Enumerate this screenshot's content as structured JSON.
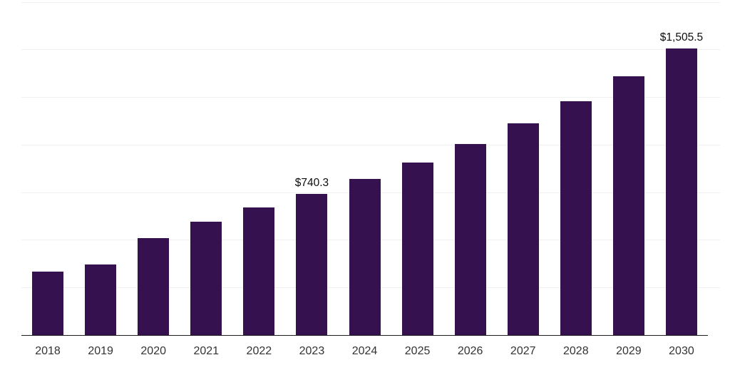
{
  "chart": {
    "background": "#ffffff",
    "bar_color": "#361150",
    "grid_color": "#f0f0f2",
    "axis_color": "#1f1f1f",
    "xtick_color": "#333333",
    "data_label_color": "#0d0d0d"
  },
  "chart_data": {
    "type": "bar",
    "title": "",
    "xlabel": "",
    "ylabel": "",
    "categories": [
      "2018",
      "2019",
      "2020",
      "2021",
      "2022",
      "2023",
      "2024",
      "2025",
      "2026",
      "2027",
      "2028",
      "2029",
      "2030"
    ],
    "values": [
      335,
      371,
      508,
      596,
      669,
      740.3,
      820,
      907,
      1004,
      1111,
      1229,
      1360,
      1505.5
    ],
    "point_labels": [
      "",
      "",
      "",
      "",
      "",
      "$740.3",
      "",
      "",
      "",
      "",
      "",
      "",
      "$1,505.5"
    ],
    "ylim": [
      0,
      1750
    ],
    "gridline_step": 250,
    "grid": true,
    "legend_position": "none",
    "currency_unit": "$"
  }
}
